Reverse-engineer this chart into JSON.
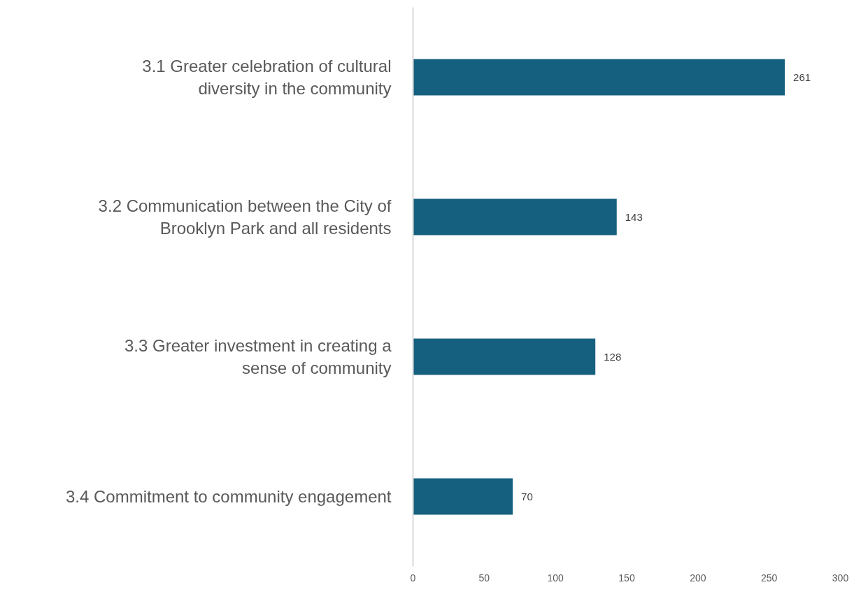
{
  "chart_data": {
    "type": "bar",
    "orientation": "horizontal",
    "categories": [
      "3.1 Greater celebration of cultural diversity in the community",
      "3.2 Communication between the City of Brooklyn Park and all residents",
      "3.3 Greater investment in creating a sense of community",
      "3.4 Commitment to community engagement"
    ],
    "values": [
      261,
      143,
      128,
      70
    ],
    "color": "#16607f",
    "xlim": [
      0,
      300
    ],
    "xticks": [
      0,
      50,
      100,
      150,
      200,
      250,
      300
    ],
    "data_labels": true,
    "grid": false
  }
}
